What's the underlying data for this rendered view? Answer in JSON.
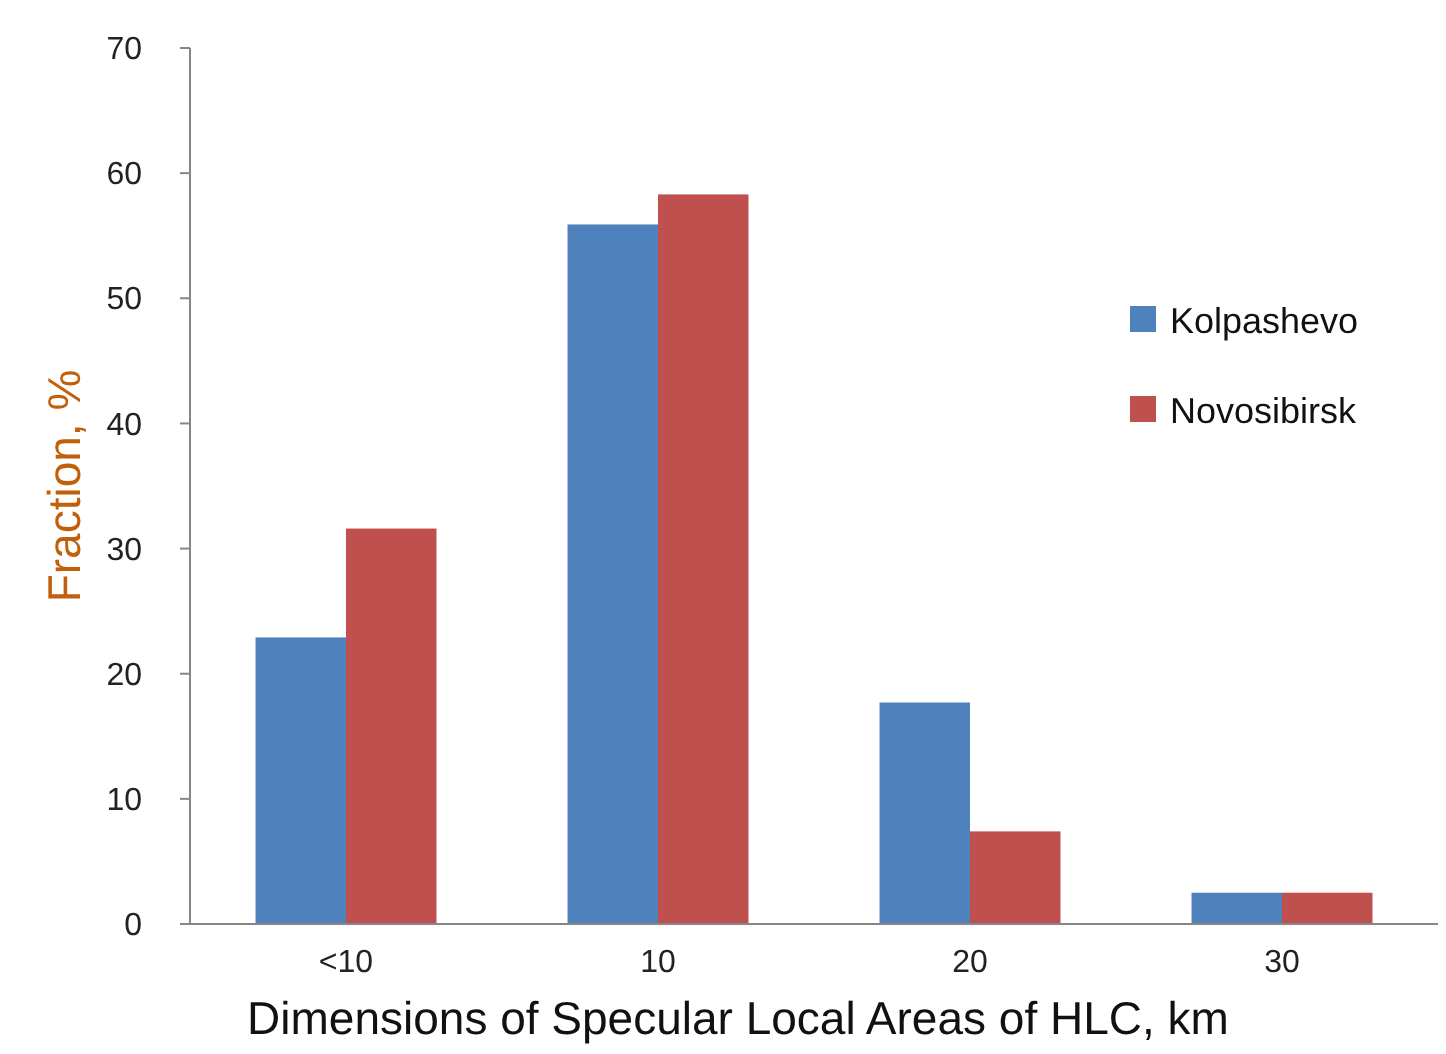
{
  "chart_data": {
    "type": "bar",
    "xlabel": "Dimensions of Specular Local Areas of HLC, km",
    "ylabel": "Fraction, %",
    "categories": [
      "<10",
      "10",
      "20",
      "30"
    ],
    "series": [
      {
        "name": "Kolpashevo",
        "color": "#4f81bd",
        "values": [
          22.9,
          55.9,
          17.7,
          2.5
        ]
      },
      {
        "name": "Novosibirsk",
        "color": "#c0504d",
        "values": [
          31.6,
          58.3,
          7.4,
          2.5
        ]
      }
    ],
    "ylim": [
      0,
      70
    ],
    "yticks": [
      0,
      10,
      20,
      30,
      40,
      50,
      60,
      70
    ],
    "grid": false,
    "legend": "right"
  }
}
